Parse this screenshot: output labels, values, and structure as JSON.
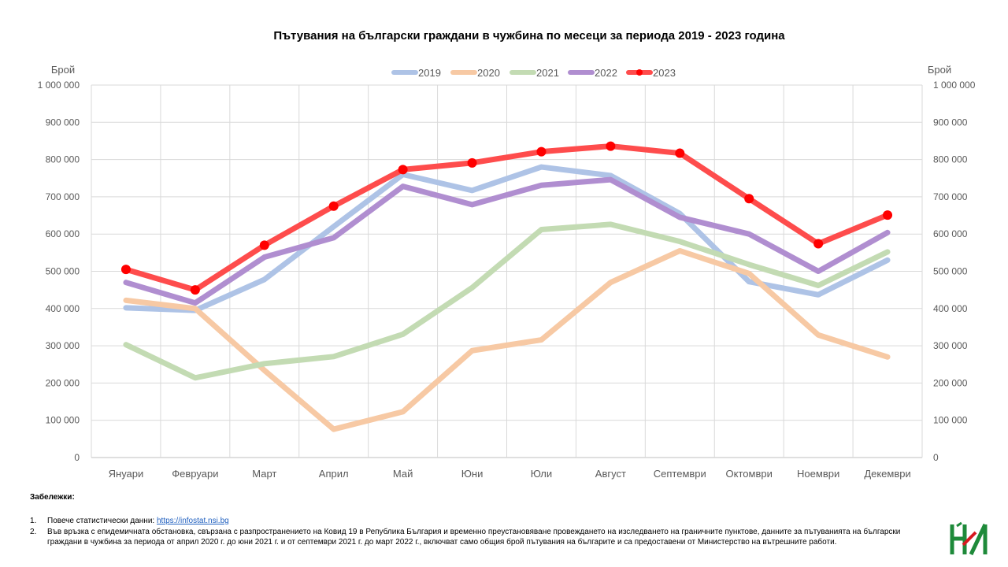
{
  "chart_data": {
    "type": "line",
    "title": "Пътувания на български граждани в чужбина по месеци за периода 2019 - 2023 година",
    "ylabel_left": "Брой",
    "ylabel_right": "Брой",
    "ylim": [
      0,
      1000000
    ],
    "yticks": [
      0,
      100000,
      200000,
      300000,
      400000,
      500000,
      600000,
      700000,
      800000,
      900000,
      1000000
    ],
    "ytick_labels": [
      "0",
      "100 000",
      "200 000",
      "300 000",
      "400 000",
      "500 000",
      "600 000",
      "700 000",
      "800 000",
      "900 000",
      "1 000 000"
    ],
    "categories": [
      "Януари",
      "Февруари",
      "Март",
      "Април",
      "Май",
      "Юни",
      "Юли",
      "Август",
      "Септември",
      "Октомври",
      "Ноември",
      "Декември"
    ],
    "grid": true,
    "legend_position": "top",
    "series": [
      {
        "name": "2019",
        "color": "#aec3e6",
        "markers": false,
        "values": [
          402000,
          395000,
          478000,
          620000,
          760000,
          717000,
          780000,
          757000,
          655000,
          472000,
          437000,
          530000
        ]
      },
      {
        "name": "2020",
        "color": "#f7c9a4",
        "markers": false,
        "values": [
          422000,
          400000,
          234000,
          76000,
          123000,
          287000,
          316000,
          470000,
          555000,
          494000,
          329000,
          270000
        ]
      },
      {
        "name": "2021",
        "color": "#c3dbb3",
        "markers": false,
        "values": [
          303000,
          214000,
          252000,
          271000,
          331000,
          456000,
          612000,
          626000,
          580000,
          518000,
          462000,
          552000
        ]
      },
      {
        "name": "2022",
        "color": "#b08ed0",
        "markers": false,
        "values": [
          470000,
          415000,
          538000,
          590000,
          728000,
          679000,
          731000,
          746000,
          645000,
          600000,
          500000,
          604000
        ]
      },
      {
        "name": "2023",
        "color": "#fe4c4c",
        "marker_color": "#ff0000",
        "markers": true,
        "values": [
          505000,
          450000,
          570000,
          675000,
          773000,
          791000,
          821000,
          836000,
          817000,
          695000,
          574000,
          651000
        ]
      }
    ]
  },
  "notes": {
    "title": "Забележки:",
    "items": [
      {
        "num": "1.",
        "text": "Повече статистически данни: ",
        "link": "https://infostat.nsi.bg"
      },
      {
        "num": "2.",
        "text": "Във връзка с епидемичната обстановка, свързана с разпространението на Ковид 19 в Република България и временно преустановяване провеждането на изследването на граничните пунктове, данните за пътуванията на български граждани в чужбина за периода от април 2020 г. до юни 2021 г. и  от септември 2021 г. до март 2022 г., включват само общия брой пътувания на българите и са предоставени от Министерство на вътрешните работи."
      }
    ]
  },
  "logo": {
    "name": "nsi-logo",
    "colors": [
      "#1e8a3a",
      "#d71920"
    ]
  }
}
